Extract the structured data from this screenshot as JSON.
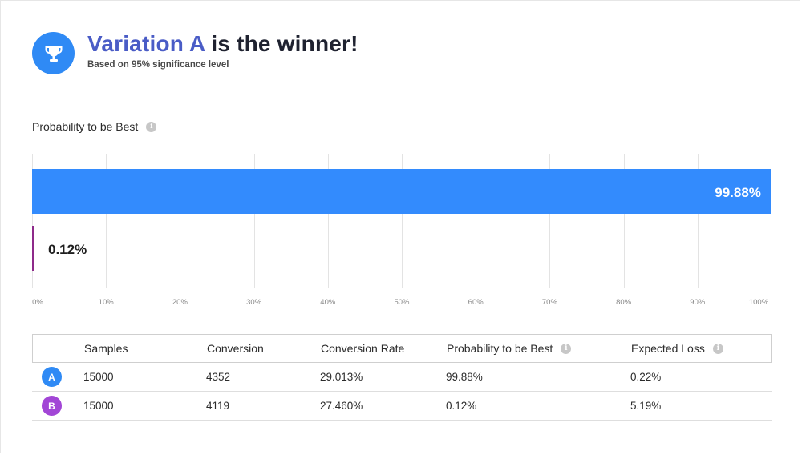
{
  "header": {
    "title_accent": "Variation A",
    "title_rest": " is the winner!",
    "subtitle": "Based on 95% significance level",
    "icon": "trophy-icon",
    "accent_color": "#4a5cc6",
    "icon_bg": "#2f8af5"
  },
  "chart_section": {
    "label": "Probability to be Best",
    "info_icon": "i"
  },
  "chart_data": {
    "type": "bar",
    "orientation": "horizontal",
    "categories": [
      "A",
      "B"
    ],
    "values": [
      99.88,
      0.12
    ],
    "data_labels": [
      "99.88%",
      "0.12%"
    ],
    "colors": [
      "#338bfd",
      "#8e2a8a"
    ],
    "xlim": [
      0,
      100
    ],
    "xticks": [
      "0%",
      "10%",
      "20%",
      "30%",
      "40%",
      "50%",
      "60%",
      "70%",
      "80%",
      "90%",
      "100%"
    ],
    "grid": true,
    "title": "",
    "xlabel": "",
    "ylabel": ""
  },
  "table": {
    "headers": [
      "Samples",
      "Conversion",
      "Conversion Rate",
      "Probability to be Best",
      "Expected Loss"
    ],
    "info_icon": "i",
    "rows": [
      {
        "variant": "A",
        "badge_color": "#2f8af5",
        "samples": "15000",
        "conversion": "4352",
        "rate": "29.013%",
        "probability": "99.88%",
        "loss": "0.22%"
      },
      {
        "variant": "B",
        "badge_color": "#a246d6",
        "samples": "15000",
        "conversion": "4119",
        "rate": "27.460%",
        "probability": "0.12%",
        "loss": "5.19%"
      }
    ]
  }
}
